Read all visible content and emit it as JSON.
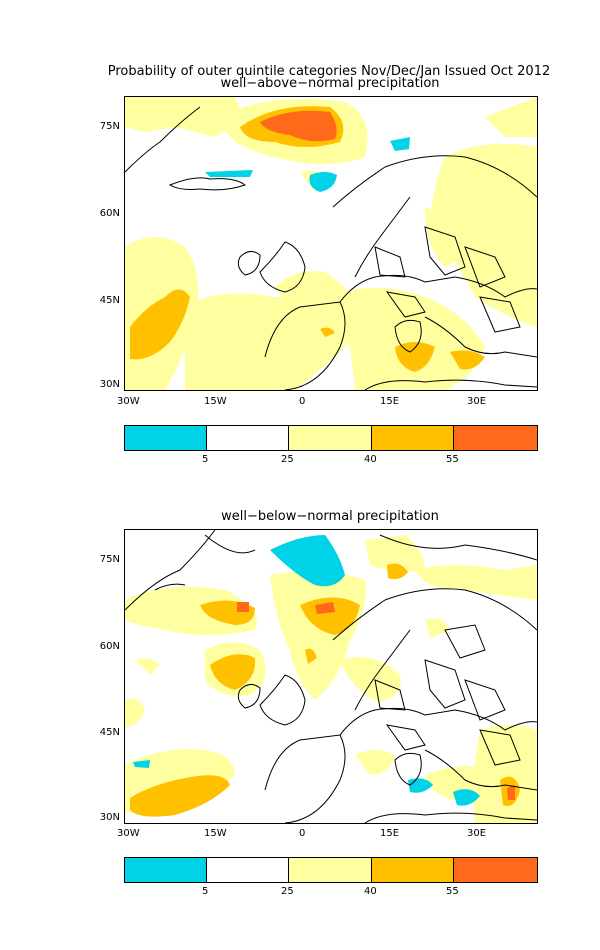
{
  "header": {
    "main_title": "Probability of outer quintile categories Nov/Dec/Jan Issued Oct 2012"
  },
  "maps": [
    {
      "subtitle": "well−above−normal precipitation"
    },
    {
      "subtitle": "well−below−normal precipitation"
    }
  ],
  "axes": {
    "x_ticks": [
      "30W",
      "15W",
      "0",
      "15E",
      "30E"
    ],
    "y_ticks": [
      "75N",
      "60N",
      "45N",
      "30N"
    ]
  },
  "colorbar": {
    "labels": [
      "5",
      "25",
      "40",
      "55"
    ],
    "colors": [
      "#00d2e8",
      "#ffffff",
      "#ffffa0",
      "#ffc000",
      "#ff6a1a"
    ]
  },
  "palette": {
    "cyan": "#00d2e8",
    "light_yellow": "#ffffa0",
    "orange": "#ffc000",
    "dark_orange": "#ff6a1a",
    "coast": "#000000"
  }
}
